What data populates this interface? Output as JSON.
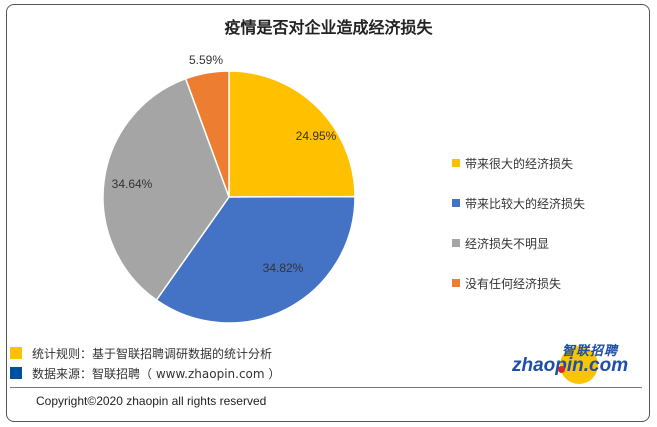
{
  "chart_data": {
    "type": "pie",
    "title": "疫情是否对企业造成经济损失",
    "categories": [
      "带来很大的经济损失",
      "带来比较大的经济损失",
      "经济损失不明显",
      "没有任何经济损失"
    ],
    "values": [
      24.95,
      34.82,
      34.64,
      5.59
    ],
    "labels": [
      "24.95%",
      "34.82%",
      "34.64%",
      "5.59%"
    ],
    "colors": [
      "#FFC000",
      "#4472C4",
      "#A5A5A5",
      "#ED7D31"
    ],
    "legend_position": "right",
    "start_angle": "12 o'clock, clockwise"
  },
  "legend": {
    "items": [
      {
        "label": "带来很大的经济损失",
        "color": "#FFC000"
      },
      {
        "label": "带来比较大的经济损失",
        "color": "#4472C4"
      },
      {
        "label": "经济损失不明显",
        "color": "#A5A5A5"
      },
      {
        "label": "没有任何经济损失",
        "color": "#ED7D31"
      }
    ]
  },
  "notes": {
    "rule": {
      "text": "统计规则：基于智联招聘调研数据的统计分析",
      "color": "#FFC000"
    },
    "source": {
      "text": "数据来源：智联招聘（ www.zhaopin.com ）",
      "color": "#0050A0"
    }
  },
  "logo": {
    "cn": "智联招聘",
    "en": "zhaopin.com"
  },
  "footer": {
    "copyright": "Copyright©2020 zhaopin all rights reserved"
  }
}
